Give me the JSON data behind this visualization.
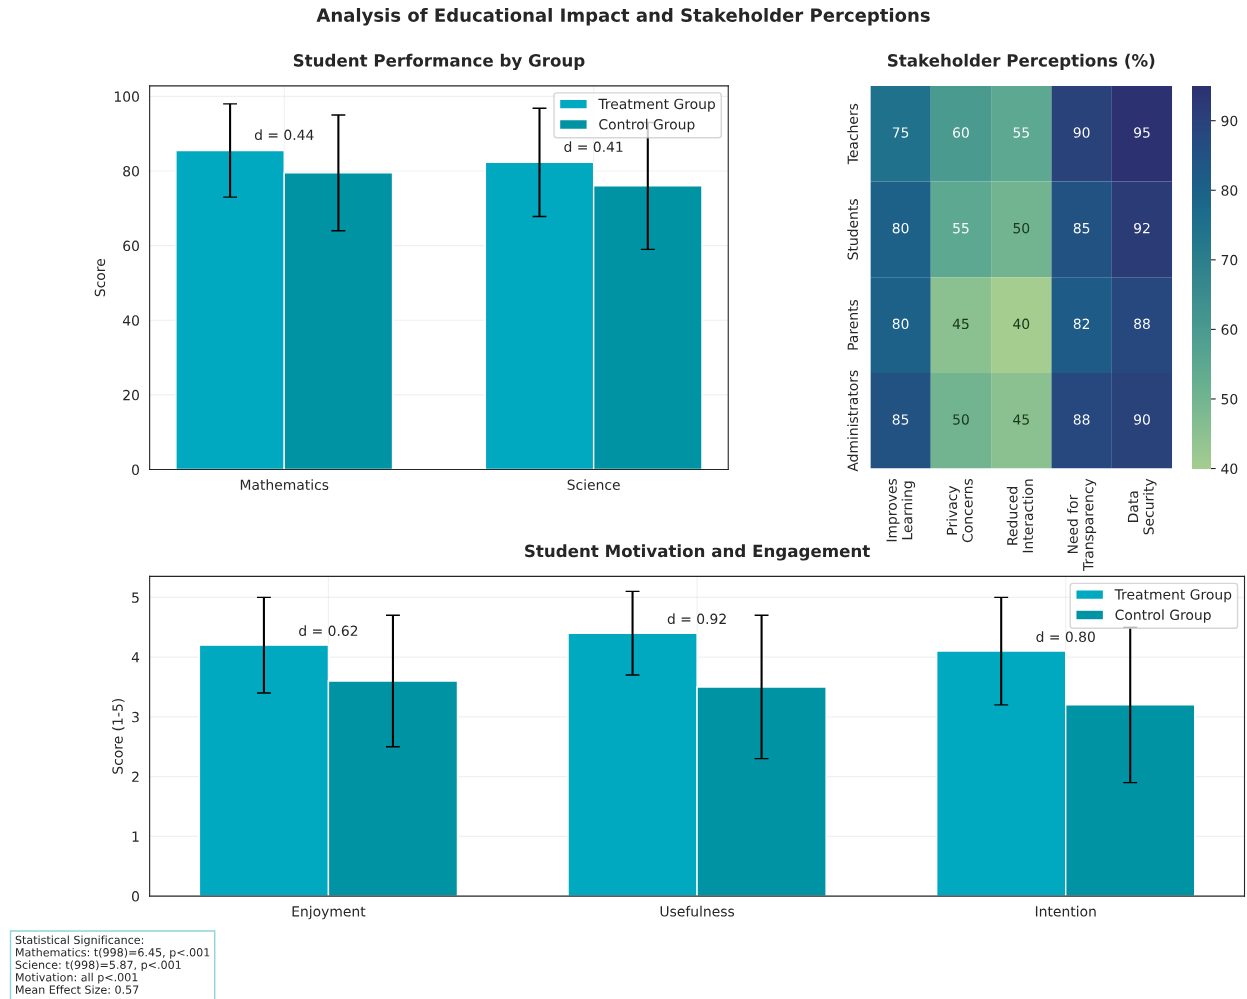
{
  "chart_data": [
    {
      "type": "bar",
      "title": "Student Performance by Group",
      "ylabel": "Score",
      "categories": [
        "Mathematics",
        "Science"
      ],
      "series": [
        {
          "name": "Treatment Group",
          "color": "#00a8c0",
          "values": [
            85.5,
            82.3
          ],
          "errors": [
            12.5,
            14.5
          ]
        },
        {
          "name": "Control Group",
          "color": "#0093a3",
          "values": [
            79.5,
            76
          ],
          "errors": [
            15.5,
            17
          ]
        }
      ],
      "ylim": [
        0,
        102.8
      ],
      "yticks": [
        0,
        20,
        40,
        60,
        80,
        100
      ],
      "grid": true,
      "legend": "top right",
      "annotations": [
        "Analysis of Educational Impact and Stakeholder Perceptions",
        "d = 0.44",
        "d = 0.41"
      ]
    },
    {
      "type": "heatmap",
      "title": "Stakeholder Perceptions (%)",
      "categories": [
        "Improves\nLearning",
        "Privacy\nConcerns",
        "Reduced\nInteraction",
        "Need for\nTransparency",
        "Data\nSecurity"
      ],
      "y_categories": [
        "Teachers",
        "Students",
        "Parents",
        "Administrators"
      ],
      "cells": [
        [
          75,
          60,
          55,
          90,
          95
        ],
        [
          80,
          55,
          50,
          85,
          92
        ],
        [
          80,
          45,
          40,
          82,
          88
        ],
        [
          85,
          50,
          45,
          88,
          90
        ]
      ],
      "data_labels": true,
      "clim": [
        40,
        95
      ],
      "cticks": [
        40,
        50,
        60,
        70,
        80,
        90
      ]
    },
    {
      "type": "bar",
      "title": "Student Motivation and Engagement",
      "ylabel": "Score (1-5)",
      "categories": [
        "Enjoyment",
        "Usefulness",
        "Intention"
      ],
      "series": [
        {
          "name": "Treatment Group",
          "color": "#00a8c0",
          "values": [
            4.2,
            4.4,
            4.1
          ],
          "errors": [
            0.8,
            0.7,
            0.9
          ]
        },
        {
          "name": "Control Group",
          "color": "#0093a3",
          "values": [
            3.6,
            3.5,
            3.2
          ],
          "errors": [
            1.1,
            1.2,
            1.3
          ]
        }
      ],
      "ylim": [
        0,
        5.35
      ],
      "yticks": [
        0,
        1,
        2,
        3,
        4,
        5
      ],
      "grid": true,
      "legend": "top right",
      "annotations": [
        "d = 0.62",
        "d = 0.92",
        "d = 0.80",
        "Statistical Significance:\nMathematics: t(998)=6.45, p<.001\nScience: t(998)=5.87, p<.001\nMotivation: all p<.001\nMean Effect Size: 0.57"
      ]
    }
  ]
}
